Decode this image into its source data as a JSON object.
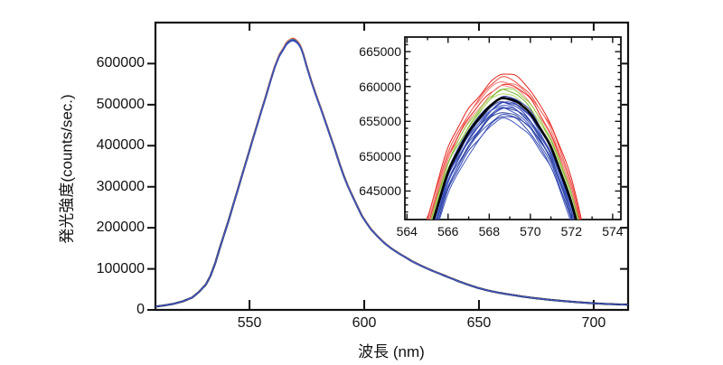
{
  "figure": {
    "background": "#ffffff",
    "frame_color": "#111111"
  },
  "chart_data": [
    {
      "id": "main",
      "type": "line",
      "title": "",
      "xlabel": "波長 (nm)",
      "ylabel": "発光強度(counts/sec.)",
      "xlim": [
        509,
        715
      ],
      "ylim": [
        0,
        700000
      ],
      "x_ticks": [
        550,
        600,
        650,
        700
      ],
      "x_tick_labels": [
        "550",
        "600",
        "650",
        "700"
      ],
      "y_ticks": [
        0,
        100000,
        200000,
        300000,
        400000,
        500000,
        600000
      ],
      "y_tick_labels": [
        "0",
        "100000",
        "200000",
        "300000",
        "400000",
        "500000",
        "600000"
      ],
      "grid": false,
      "legend": "none",
      "description": "About 23 overlapping emission spectra; bundle appears blue with red fringe at the peak",
      "base_spectrum": {
        "wavelength_nm": [
          509,
          513,
          517,
          521,
          525,
          528,
          531,
          533,
          535,
          537,
          539,
          541,
          543,
          545,
          547,
          549,
          551,
          553,
          555,
          557,
          559,
          561,
          563,
          565,
          566,
          567,
          568,
          568.6,
          569.3,
          570,
          571,
          572,
          572.5,
          573.5,
          575,
          577,
          579,
          581,
          583,
          585,
          587,
          589,
          591,
          593,
          595,
          597,
          599,
          601,
          603,
          606,
          609,
          612,
          615,
          618,
          621,
          625,
          629,
          633,
          637,
          641,
          645,
          649,
          653,
          657,
          661,
          665,
          669,
          673,
          677,
          681,
          685,
          689,
          693,
          697,
          701,
          705,
          709,
          713,
          715
        ],
        "counts": [
          8000,
          11000,
          15000,
          21000,
          30000,
          44000,
          62000,
          83000,
          113000,
          150000,
          185000,
          220000,
          258000,
          295000,
          333000,
          370000,
          408000,
          445000,
          482000,
          518000,
          556000,
          592000,
          620000,
          638000,
          648000,
          653500,
          657200,
          658500,
          658000,
          656200,
          651500,
          643500,
          637500,
          622000,
          592000,
          556000,
          523000,
          492000,
          460000,
          427000,
          395000,
          360000,
          328000,
          300000,
          276000,
          252000,
          229000,
          212000,
          196000,
          178000,
          162000,
          149000,
          138000,
          128000,
          118000,
          107000,
          97000,
          88000,
          79000,
          70000,
          62000,
          54500,
          48500,
          43500,
          39500,
          36000,
          32500,
          29500,
          27000,
          24500,
          22500,
          20500,
          18800,
          17200,
          15800,
          14600,
          13700,
          13100,
          12800
        ],
        "peak_nm": 568.6,
        "peak_counts": 658500
      },
      "series_groups": [
        {
          "name": "red-traces",
          "colors": [
            "#e2231a",
            "#ee453d",
            "#f4736d",
            "#e2231a",
            "#f58b86"
          ],
          "scale_factors": [
            0.0052,
            0.0043,
            0.0037,
            0.003,
            0.0025
          ]
        },
        {
          "name": "green-traces",
          "colors": [
            "#96c93d",
            "#7ab32a",
            "#b5d96a"
          ],
          "scale_factors": [
            0.002,
            0.0015,
            0.001
          ]
        },
        {
          "name": "blue-traces",
          "colors": [
            "#3448b8",
            "#2c3ea6",
            "#4157c6",
            "#30459c",
            "#3a50bd",
            "#2a3eb0",
            "#4a63cc",
            "#35489f",
            "#2f44b0",
            "#3d54c2",
            "#30459a",
            "#3950b6",
            "#2c40aa",
            "#4157c0"
          ],
          "scale_factors": [
            0.0004,
            0.0,
            -0.0003,
            -0.0006,
            -0.0009,
            -0.0013,
            -0.0016,
            -0.0019,
            -0.0022,
            -0.0026,
            -0.003,
            -0.0035,
            -0.0041,
            -0.0047
          ]
        },
        {
          "name": "black-mean-trace",
          "colors": [
            "#000000"
          ],
          "scale_factors": [
            0.0
          ]
        }
      ]
    },
    {
      "id": "inset",
      "type": "line",
      "title": "",
      "xlabel": "",
      "ylabel": "",
      "xlim": [
        563.9,
        574.4
      ],
      "ylim": [
        640900,
        667100
      ],
      "x_ticks": [
        564,
        566,
        568,
        570,
        572,
        574
      ],
      "x_tick_labels": [
        "564",
        "566",
        "568",
        "570",
        "572",
        "574"
      ],
      "y_ticks": [
        645000,
        650000,
        655000,
        660000,
        665000
      ],
      "y_tick_labels": [
        "645000",
        "650000",
        "655000",
        "660000",
        "665000"
      ],
      "x_minor_step": 1,
      "y_minor_step": 1000,
      "grid": false,
      "legend": "none",
      "description": "Zoom of the emission peak showing trace-to-trace spread: red ~662000 max, black mean ~658500, blue ~655400 min"
    }
  ]
}
